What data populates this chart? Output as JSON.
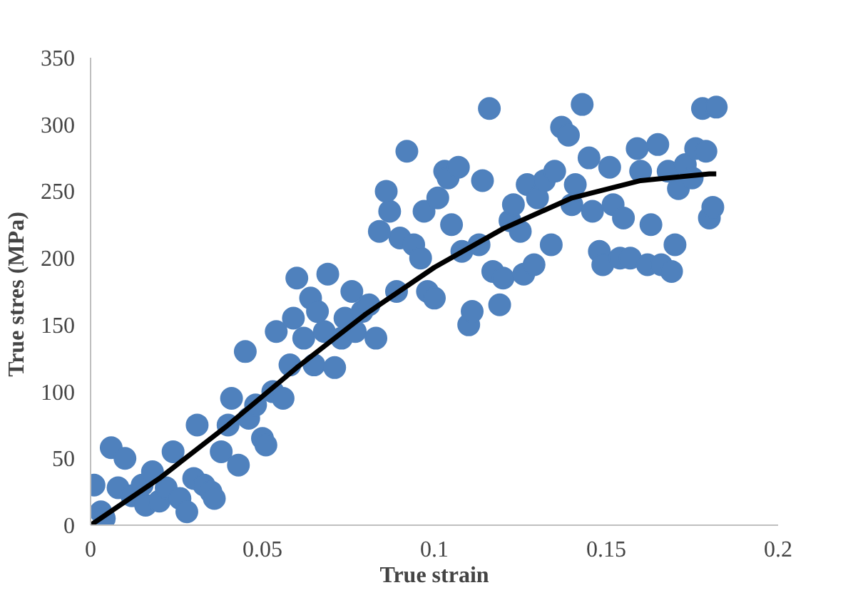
{
  "chart_data": {
    "type": "scatter",
    "xlabel": "True strain",
    "ylabel": "True stres  (MPa)",
    "xlim": [
      0,
      0.2
    ],
    "ylim": [
      0,
      350
    ],
    "xticks": [
      0,
      0.05,
      0.1,
      0.15,
      0.2
    ],
    "yticks": [
      0,
      50,
      100,
      150,
      200,
      250,
      300,
      350
    ],
    "grid": false,
    "series": [
      {
        "marker": "circle",
        "color": "#4f81bd",
        "x": [
          0.001,
          0.003,
          0.004,
          0.006,
          0.008,
          0.01,
          0.012,
          0.015,
          0.016,
          0.018,
          0.02,
          0.022,
          0.024,
          0.026,
          0.028,
          0.03,
          0.031,
          0.033,
          0.035,
          0.036,
          0.038,
          0.04,
          0.041,
          0.043,
          0.045,
          0.046,
          0.048,
          0.05,
          0.051,
          0.053,
          0.054,
          0.056,
          0.058,
          0.059,
          0.06,
          0.062,
          0.064,
          0.065,
          0.066,
          0.068,
          0.069,
          0.071,
          0.073,
          0.074,
          0.076,
          0.077,
          0.079,
          0.081,
          0.083,
          0.084,
          0.086,
          0.087,
          0.089,
          0.09,
          0.092,
          0.094,
          0.096,
          0.097,
          0.098,
          0.1,
          0.101,
          0.103,
          0.104,
          0.105,
          0.107,
          0.108,
          0.11,
          0.111,
          0.113,
          0.114,
          0.116,
          0.117,
          0.119,
          0.12,
          0.122,
          0.123,
          0.125,
          0.126,
          0.127,
          0.129,
          0.13,
          0.132,
          0.134,
          0.135,
          0.137,
          0.139,
          0.14,
          0.141,
          0.143,
          0.145,
          0.146,
          0.148,
          0.149,
          0.151,
          0.152,
          0.154,
          0.155,
          0.157,
          0.159,
          0.16,
          0.162,
          0.163,
          0.165,
          0.166,
          0.168,
          0.169,
          0.17,
          0.171,
          0.173,
          0.175,
          0.176,
          0.178,
          0.179,
          0.18,
          0.181,
          0.182
        ],
        "values": [
          30,
          10,
          5,
          58,
          28,
          50,
          22,
          30,
          15,
          40,
          18,
          28,
          55,
          20,
          10,
          35,
          75,
          30,
          25,
          20,
          55,
          75,
          95,
          45,
          130,
          80,
          90,
          65,
          60,
          100,
          145,
          95,
          120,
          155,
          185,
          140,
          170,
          120,
          160,
          145,
          188,
          118,
          140,
          155,
          175,
          145,
          160,
          165,
          140,
          220,
          250,
          235,
          175,
          215,
          280,
          210,
          200,
          235,
          175,
          170,
          245,
          265,
          260,
          225,
          268,
          205,
          150,
          160,
          210,
          258,
          312,
          190,
          165,
          185,
          228,
          240,
          220,
          188,
          255,
          195,
          245,
          258,
          210,
          265,
          298,
          292,
          240,
          255,
          315,
          275,
          235,
          205,
          195,
          268,
          240,
          200,
          230,
          200,
          282,
          265,
          195,
          225,
          285,
          195,
          265,
          190,
          210,
          252,
          270,
          260,
          282,
          312,
          280,
          230,
          238,
          313
        ]
      },
      {
        "type": "line",
        "color": "#000000",
        "x": [
          0,
          0.02,
          0.04,
          0.06,
          0.08,
          0.1,
          0.12,
          0.14,
          0.16,
          0.18,
          0.182
        ],
        "values": [
          0,
          35,
          75,
          118,
          158,
          193,
          222,
          245,
          258,
          263,
          263
        ]
      }
    ]
  }
}
